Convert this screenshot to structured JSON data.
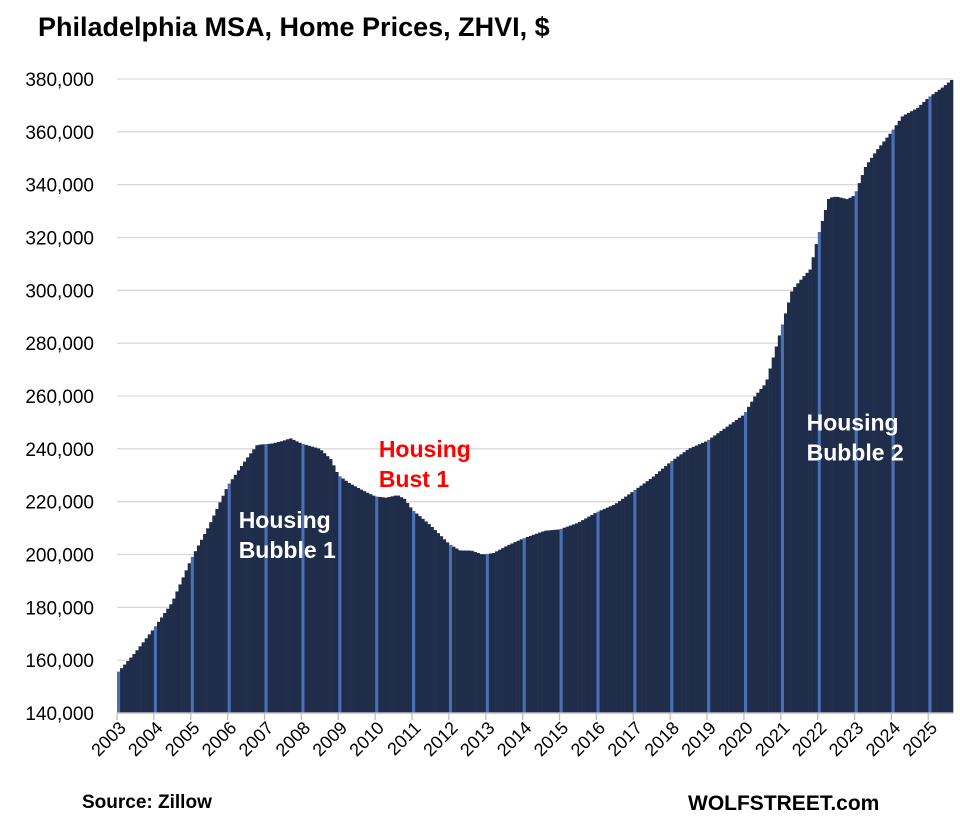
{
  "title": "Philadelphia MSA, Home Prices, ZHVI, $",
  "source": "Source: Zillow",
  "brand": "WOLFSTREET.com",
  "colors": {
    "bar": "#1f2d4b",
    "bar_edge": "#4a6fb5",
    "grid": "#d9d9d9",
    "bust": "#ff0000",
    "bubble": "#ffffff"
  },
  "chart_data": {
    "type": "bar",
    "ylim": [
      140000,
      380000
    ],
    "yticks": [
      "140,000",
      "160,000",
      "180,000",
      "200,000",
      "220,000",
      "240,000",
      "260,000",
      "280,000",
      "300,000",
      "320,000",
      "340,000",
      "360,000",
      "380,000"
    ],
    "ytick_values": [
      140000,
      160000,
      180000,
      200000,
      220000,
      240000,
      260000,
      280000,
      300000,
      320000,
      340000,
      360000,
      380000
    ],
    "xticks": [
      "2003",
      "2004",
      "2005",
      "2006",
      "2007",
      "2008",
      "2009",
      "2010",
      "2011",
      "2012",
      "2013",
      "2014",
      "2015",
      "2016",
      "2017",
      "2018",
      "2019",
      "2020",
      "2021",
      "2022",
      "2023",
      "2024",
      "2025"
    ],
    "grid": true,
    "series_anchors": [
      {
        "t": 2003.0,
        "v": 155000
      },
      {
        "t": 2003.5,
        "v": 163000
      },
      {
        "t": 2004.0,
        "v": 172000
      },
      {
        "t": 2004.5,
        "v": 182000
      },
      {
        "t": 2005.0,
        "v": 198000
      },
      {
        "t": 2005.5,
        "v": 211000
      },
      {
        "t": 2006.0,
        "v": 226000
      },
      {
        "t": 2006.5,
        "v": 236000
      },
      {
        "t": 2006.8,
        "v": 241500
      },
      {
        "t": 2007.2,
        "v": 242000
      },
      {
        "t": 2007.5,
        "v": 243000
      },
      {
        "t": 2007.7,
        "v": 244000
      },
      {
        "t": 2008.0,
        "v": 242000
      },
      {
        "t": 2008.5,
        "v": 240000
      },
      {
        "t": 2008.8,
        "v": 236000
      },
      {
        "t": 2009.0,
        "v": 230000
      },
      {
        "t": 2009.3,
        "v": 227000
      },
      {
        "t": 2009.7,
        "v": 224000
      },
      {
        "t": 2010.0,
        "v": 222000
      },
      {
        "t": 2010.3,
        "v": 221500
      },
      {
        "t": 2010.6,
        "v": 222500
      },
      {
        "t": 2010.8,
        "v": 221000
      },
      {
        "t": 2011.0,
        "v": 217000
      },
      {
        "t": 2011.5,
        "v": 211000
      },
      {
        "t": 2012.0,
        "v": 204000
      },
      {
        "t": 2012.3,
        "v": 201500
      },
      {
        "t": 2012.6,
        "v": 201500
      },
      {
        "t": 2012.9,
        "v": 200000
      },
      {
        "t": 2013.2,
        "v": 200500
      },
      {
        "t": 2013.6,
        "v": 203500
      },
      {
        "t": 2014.0,
        "v": 206000
      },
      {
        "t": 2014.6,
        "v": 209000
      },
      {
        "t": 2015.0,
        "v": 209500
      },
      {
        "t": 2015.5,
        "v": 212000
      },
      {
        "t": 2016.0,
        "v": 216000
      },
      {
        "t": 2016.5,
        "v": 219000
      },
      {
        "t": 2017.0,
        "v": 224000
      },
      {
        "t": 2017.5,
        "v": 229000
      },
      {
        "t": 2018.0,
        "v": 235000
      },
      {
        "t": 2018.5,
        "v": 240000
      },
      {
        "t": 2019.0,
        "v": 243000
      },
      {
        "t": 2019.5,
        "v": 248000
      },
      {
        "t": 2020.0,
        "v": 253000
      },
      {
        "t": 2020.3,
        "v": 260000
      },
      {
        "t": 2020.6,
        "v": 265000
      },
      {
        "t": 2021.0,
        "v": 285000
      },
      {
        "t": 2021.3,
        "v": 300000
      },
      {
        "t": 2021.6,
        "v": 305000
      },
      {
        "t": 2021.8,
        "v": 308000
      },
      {
        "t": 2022.0,
        "v": 320000
      },
      {
        "t": 2022.3,
        "v": 335000
      },
      {
        "t": 2022.5,
        "v": 335500
      },
      {
        "t": 2022.8,
        "v": 334500
      },
      {
        "t": 2023.0,
        "v": 336000
      },
      {
        "t": 2023.3,
        "v": 347000
      },
      {
        "t": 2023.6,
        "v": 353000
      },
      {
        "t": 2024.0,
        "v": 360000
      },
      {
        "t": 2024.3,
        "v": 366000
      },
      {
        "t": 2024.7,
        "v": 369000
      },
      {
        "t": 2025.0,
        "v": 373000
      },
      {
        "t": 2025.4,
        "v": 377000
      },
      {
        "t": 2025.7,
        "v": 380500
      }
    ],
    "annotations": [
      {
        "lines": [
          "Housing",
          "Bubble 1"
        ],
        "color": "white",
        "t": 2006.3,
        "v": 210000
      },
      {
        "lines": [
          "Housing",
          "Bust 1"
        ],
        "color": "red",
        "t": 2010.1,
        "v": 237000
      },
      {
        "lines": [
          "Housing",
          "Bubble 2"
        ],
        "color": "white",
        "t": 2021.7,
        "v": 247000
      }
    ]
  }
}
